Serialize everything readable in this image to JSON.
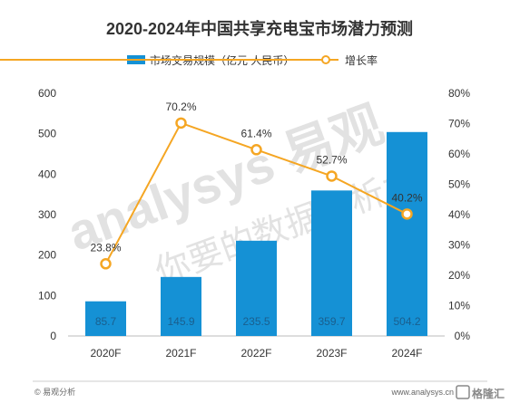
{
  "chart_data": {
    "type": "bar",
    "title": "2020-2024年中国共享充电宝市场潜力预测",
    "categories": [
      "2020F",
      "2021F",
      "2022F",
      "2023F",
      "2024F"
    ],
    "series": [
      {
        "name": "市场交易规模（亿元 人民币）",
        "type": "bar",
        "axis": "left",
        "color": "#1591d5",
        "values": [
          85.7,
          145.9,
          235.5,
          359.7,
          504.2
        ],
        "labels": [
          "85.7",
          "145.9",
          "235.5",
          "359.7",
          "504.2"
        ]
      },
      {
        "name": "增长率",
        "type": "line",
        "axis": "right",
        "color": "#f5a623",
        "values": [
          23.8,
          70.2,
          61.4,
          52.7,
          40.2
        ],
        "labels": [
          "23.8%",
          "70.2%",
          "61.4%",
          "52.7%",
          "40.2%"
        ]
      }
    ],
    "ylim_left": [
      0,
      600
    ],
    "yticks_left": [
      "0",
      "100",
      "200",
      "300",
      "400",
      "500",
      "600"
    ],
    "ylim_right": [
      0,
      80
    ],
    "yticks_right": [
      "0%",
      "10%",
      "20%",
      "30%",
      "40%",
      "50%",
      "60%",
      "70%",
      "80%"
    ],
    "legend_position": "top-center",
    "grid": false
  },
  "watermark": {
    "brand": "analysys 易观",
    "slogan": "你要的数据分析力"
  },
  "footer": {
    "left": "© 易观分析",
    "right": "www.analysys.cn",
    "logo_text": "格隆汇"
  },
  "colors": {
    "bar": "#1591d5",
    "line": "#f5a623",
    "text": "#333333"
  }
}
